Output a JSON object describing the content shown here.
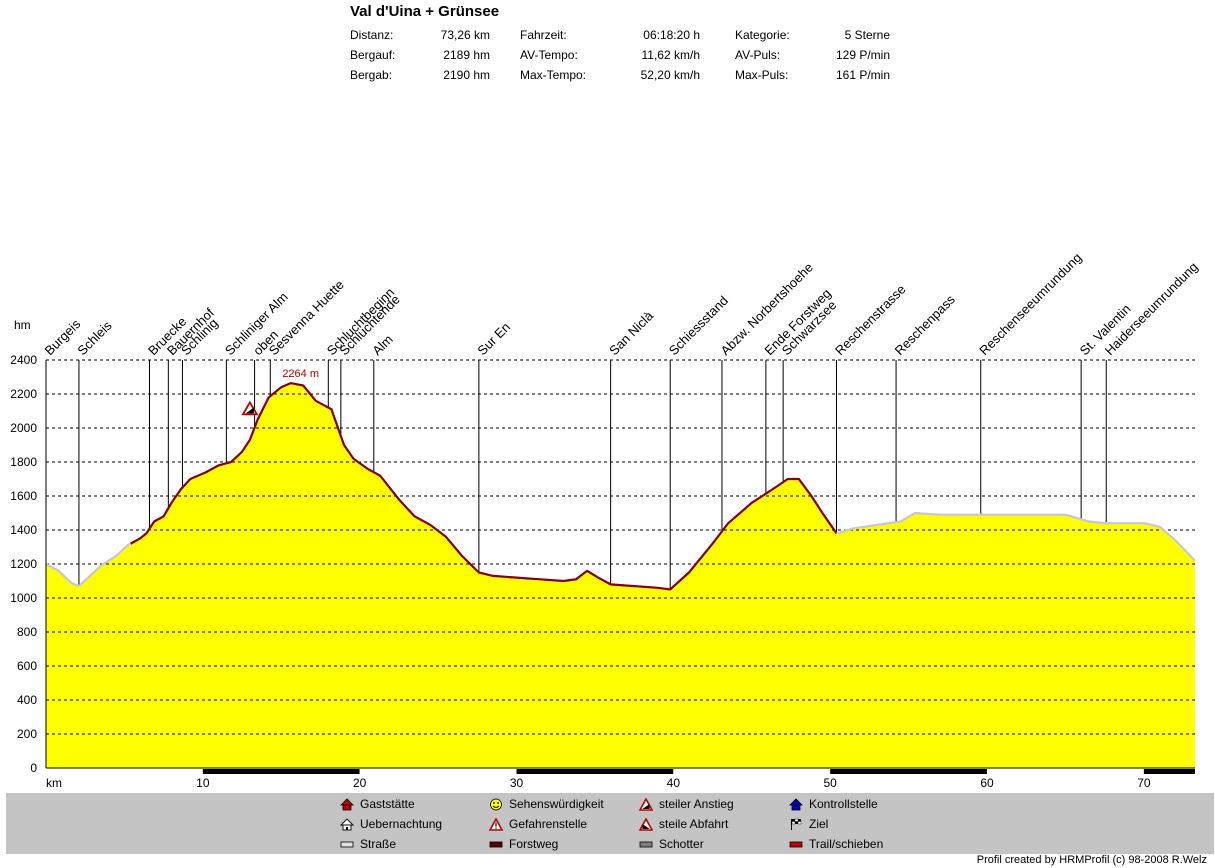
{
  "header": {
    "title": "Val d'Uina + Grünsee",
    "stats": [
      {
        "label": "Distanz:",
        "value": "73,26 km"
      },
      {
        "label": "Bergauf:",
        "value": "2189 hm"
      },
      {
        "label": "Bergab:",
        "value": "2190 hm"
      },
      {
        "label": "Fahrzeit:",
        "value": "06:18:20 h"
      },
      {
        "label": "AV-Tempo:",
        "value": "11,62 km/h"
      },
      {
        "label": "Max-Tempo:",
        "value": "52,20 km/h"
      },
      {
        "label": "Kategorie:",
        "value": "5 Sterne"
      },
      {
        "label": "AV-Puls:",
        "value": "129 P/min"
      },
      {
        "label": "Max-Puls:",
        "value": "161 P/min"
      }
    ]
  },
  "chart_data": {
    "type": "area",
    "ylabel": "hm",
    "xlabel": "km",
    "xlim": [
      0,
      73.26
    ],
    "ylim": [
      0,
      2400
    ],
    "yticks": [
      0,
      200,
      400,
      600,
      800,
      1000,
      1200,
      1400,
      1600,
      1800,
      2000,
      2200,
      2400
    ],
    "xticks": [
      10,
      20,
      30,
      40,
      50,
      60,
      70
    ],
    "grid": true,
    "fill_color": "#ffff00",
    "trail_color": "#800000",
    "road_color": "#c8c8c8",
    "max_annotation": {
      "km": 15.6,
      "label": "2264 m",
      "color": "#c00000"
    },
    "hazard_marker": {
      "km": 13.0,
      "hm": 2080,
      "icon": "steep-climb-icon"
    },
    "profile": [
      [
        0,
        1200
      ],
      [
        0.8,
        1160
      ],
      [
        1.6,
        1090
      ],
      [
        2.1,
        1070
      ],
      [
        2.7,
        1120
      ],
      [
        3.5,
        1190
      ],
      [
        4.5,
        1250
      ],
      [
        5.2,
        1310
      ],
      [
        6.0,
        1350
      ],
      [
        6.4,
        1380
      ],
      [
        6.9,
        1450
      ],
      [
        7.5,
        1480
      ],
      [
        8.0,
        1560
      ],
      [
        8.6,
        1640
      ],
      [
        9.2,
        1700
      ],
      [
        10.2,
        1740
      ],
      [
        11.0,
        1780
      ],
      [
        11.8,
        1800
      ],
      [
        12.5,
        1860
      ],
      [
        13.0,
        1930
      ],
      [
        13.5,
        2050
      ],
      [
        14.2,
        2180
      ],
      [
        15.0,
        2240
      ],
      [
        15.6,
        2264
      ],
      [
        16.4,
        2250
      ],
      [
        17.2,
        2160
      ],
      [
        18.2,
        2110
      ],
      [
        19.0,
        1900
      ],
      [
        19.6,
        1820
      ],
      [
        20.5,
        1760
      ],
      [
        21.3,
        1720
      ],
      [
        22.5,
        1580
      ],
      [
        23.5,
        1480
      ],
      [
        24.5,
        1430
      ],
      [
        25.5,
        1360
      ],
      [
        26.5,
        1250
      ],
      [
        27.6,
        1150
      ],
      [
        28.5,
        1130
      ],
      [
        30.0,
        1120
      ],
      [
        31.5,
        1110
      ],
      [
        33.0,
        1100
      ],
      [
        33.8,
        1110
      ],
      [
        34.5,
        1160
      ],
      [
        35.2,
        1120
      ],
      [
        36.0,
        1080
      ],
      [
        37.5,
        1070
      ],
      [
        39.0,
        1060
      ],
      [
        39.8,
        1050
      ],
      [
        41.0,
        1150
      ],
      [
        42.5,
        1320
      ],
      [
        43.5,
        1440
      ],
      [
        45.0,
        1560
      ],
      [
        46.0,
        1620
      ],
      [
        46.5,
        1650
      ],
      [
        47.3,
        1700
      ],
      [
        48.0,
        1700
      ],
      [
        48.8,
        1600
      ],
      [
        49.5,
        1500
      ],
      [
        50.4,
        1380
      ],
      [
        51.5,
        1410
      ],
      [
        53.0,
        1430
      ],
      [
        54.5,
        1450
      ],
      [
        55.4,
        1500
      ],
      [
        57.0,
        1490
      ],
      [
        60.0,
        1490
      ],
      [
        63.0,
        1490
      ],
      [
        65.0,
        1490
      ],
      [
        66.5,
        1450
      ],
      [
        67.5,
        1440
      ],
      [
        69.0,
        1440
      ],
      [
        70.0,
        1440
      ],
      [
        71.0,
        1420
      ],
      [
        72.0,
        1340
      ],
      [
        73.26,
        1220
      ]
    ],
    "surface": [
      {
        "from": 0,
        "to": 2.1,
        "type": "road"
      },
      {
        "from": 2.1,
        "to": 5.4,
        "type": "road"
      },
      {
        "from": 5.4,
        "to": 27.5,
        "type": "trail"
      },
      {
        "from": 27.5,
        "to": 33.5,
        "type": "trail"
      },
      {
        "from": 33.5,
        "to": 50.4,
        "type": "trail"
      },
      {
        "from": 50.4,
        "to": 73.26,
        "type": "road"
      }
    ],
    "waypoints": [
      {
        "km": 0.0,
        "label": "Burgeis"
      },
      {
        "km": 2.1,
        "label": "Schleis"
      },
      {
        "km": 6.6,
        "label": "Bruecke"
      },
      {
        "km": 7.8,
        "label": "Bauernhof"
      },
      {
        "km": 8.7,
        "label": "Schlinig"
      },
      {
        "km": 11.5,
        "label": "Schliniger Alm"
      },
      {
        "km": 13.3,
        "label": "oben"
      },
      {
        "km": 14.3,
        "label": "Sesvenna Huette"
      },
      {
        "km": 18.0,
        "label": "Schluchtbeginn"
      },
      {
        "km": 18.8,
        "label": "Schluchtende"
      },
      {
        "km": 20.9,
        "label": "Alm"
      },
      {
        "km": 27.6,
        "label": "Sur En"
      },
      {
        "km": 36.0,
        "label": "San Niclà"
      },
      {
        "km": 39.8,
        "label": "Schiessstand"
      },
      {
        "km": 43.1,
        "label": "Abzw. Norbertshoehe"
      },
      {
        "km": 45.9,
        "label": "Ende Forstweg"
      },
      {
        "km": 47.0,
        "label": "Schwarzsee"
      },
      {
        "km": 50.4,
        "label": "Reschenstrasse"
      },
      {
        "km": 54.2,
        "label": "Reschenpass"
      },
      {
        "km": 59.6,
        "label": "Reschenseeumrundung"
      },
      {
        "km": 66.0,
        "label": "St. Valentin"
      },
      {
        "km": 67.6,
        "label": "Haiderseeumrundung"
      }
    ]
  },
  "legend": [
    {
      "icon": "restaurant-icon",
      "label": "Gaststätte"
    },
    {
      "icon": "lodging-icon",
      "label": "Uebernachtung"
    },
    {
      "icon": "road-swatch",
      "label": "Straße"
    },
    {
      "icon": "sight-icon",
      "label": "Sehenswürdigkeit"
    },
    {
      "icon": "danger-icon",
      "label": "Gefahrenstelle"
    },
    {
      "icon": "forest-road-swatch",
      "label": "Forstweg"
    },
    {
      "icon": "steep-climb-icon",
      "label": "steiler Anstieg"
    },
    {
      "icon": "steep-descent-icon",
      "label": "steile Abfahrt"
    },
    {
      "icon": "gravel-swatch",
      "label": "Schotter"
    },
    {
      "icon": "checkpoint-icon",
      "label": "Kontrollstelle"
    },
    {
      "icon": "finish-flag-icon",
      "label": "Ziel"
    },
    {
      "icon": "trail-swatch",
      "label": "Trail/schieben"
    }
  ],
  "footer": {
    "credit": "Profil created by HRMProfil (c) 98-2008 R.Welz"
  }
}
